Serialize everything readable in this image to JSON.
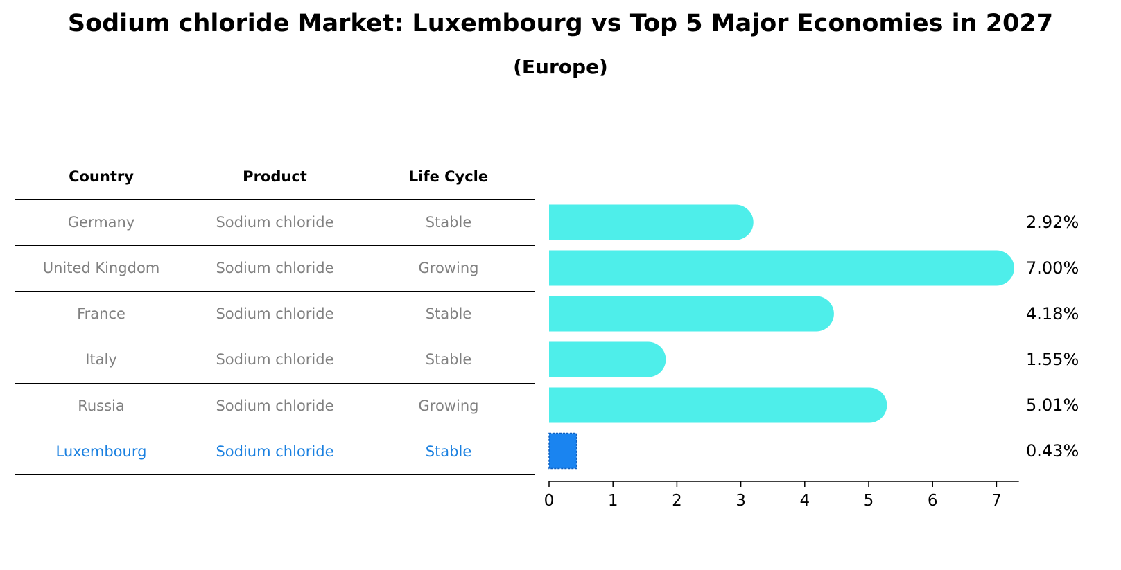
{
  "title": "Sodium chloride Market: Luxembourg vs Top 5 Major Economies in 2027",
  "subtitle": "(Europe)",
  "table": {
    "headers": [
      "Country",
      "Product",
      "Life Cycle"
    ],
    "rows": [
      {
        "country": "Germany",
        "product": "Sodium chloride",
        "life_cycle": "Stable"
      },
      {
        "country": "United Kingdom",
        "product": "Sodium chloride",
        "life_cycle": "Growing"
      },
      {
        "country": "France",
        "product": "Sodium chloride",
        "life_cycle": "Stable"
      },
      {
        "country": "Italy",
        "product": "Sodium chloride",
        "life_cycle": "Stable"
      },
      {
        "country": "Russia",
        "product": "Sodium chloride",
        "life_cycle": "Growing"
      },
      {
        "country": "Luxembourg",
        "product": "Sodium chloride",
        "life_cycle": "Stable"
      }
    ]
  },
  "chart_data": {
    "type": "bar",
    "orientation": "horizontal",
    "categories": [
      "Germany",
      "United Kingdom",
      "France",
      "Italy",
      "Russia",
      "Luxembourg"
    ],
    "values": [
      2.92,
      7.0,
      4.18,
      1.55,
      5.01,
      0.43
    ],
    "value_labels": [
      "2.92%",
      "7.00%",
      "4.18%",
      "1.55%",
      "5.01%",
      "0.43%"
    ],
    "highlight": "Luxembourg",
    "xlim": [
      0,
      7.35
    ],
    "xticks": [
      0,
      1,
      2,
      3,
      4,
      5,
      6,
      7
    ],
    "xlabel": "",
    "ylabel": "",
    "grid": false,
    "colors": {
      "bar": "#4eeeea",
      "highlight_bar": "#1a84f0",
      "highlight_text": "#1a80e0",
      "row_text": "#808080"
    }
  }
}
